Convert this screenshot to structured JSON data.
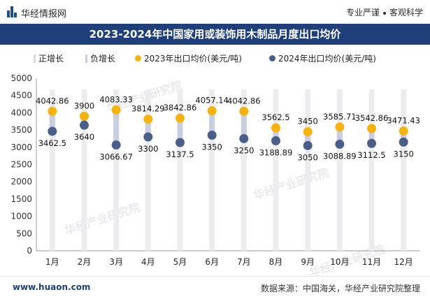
{
  "header": {
    "brand": "华经情报网",
    "tagline_left": "专业严谨",
    "tagline_right": "客观科学"
  },
  "watermarks": [
    "华经产业研究院",
    "华经产业研究院",
    "华经产业研究院",
    "华经产业研究院"
  ],
  "footer": {
    "url": "www.huaon.com",
    "source": "数据来源：中国海关，华经产业研究院整理"
  },
  "colors": {
    "title_bg": "#1f3f7a",
    "series2023": "#f6b30f",
    "series2024": "#4a5e8a",
    "up": "#d9d9d9",
    "down": "#c8cde0"
  },
  "chart_data": {
    "type": "dot-range",
    "title": "2023-2024年中国家用或装饰用木制品月度出口均价",
    "categories": [
      "1月",
      "2月",
      "3月",
      "4月",
      "5月",
      "6月",
      "7月",
      "8月",
      "9月",
      "10月",
      "11月",
      "12月"
    ],
    "ylim": [
      0,
      5000
    ],
    "yticks": [
      0,
      500,
      1000,
      1500,
      2000,
      2500,
      3000,
      3500,
      4000,
      4500,
      5000
    ],
    "legend": [
      "正增长",
      "负增长",
      "2023年出口均价(美元/吨)",
      "2024年出口均价(美元/吨)"
    ],
    "series": [
      {
        "name": "2023年出口均价(美元/吨)",
        "values": [
          4042.86,
          3900,
          4083.33,
          3814.29,
          3842.86,
          4057.14,
          4042.86,
          3562.5,
          3450,
          3585.71,
          3542.86,
          3471.43
        ]
      },
      {
        "name": "2024年出口均价(美元/吨)",
        "values": [
          3462.5,
          3640,
          3066.67,
          3300,
          3137.5,
          3350,
          3250,
          3188.89,
          3050,
          3088.89,
          3112.5,
          3150
        ]
      }
    ]
  }
}
